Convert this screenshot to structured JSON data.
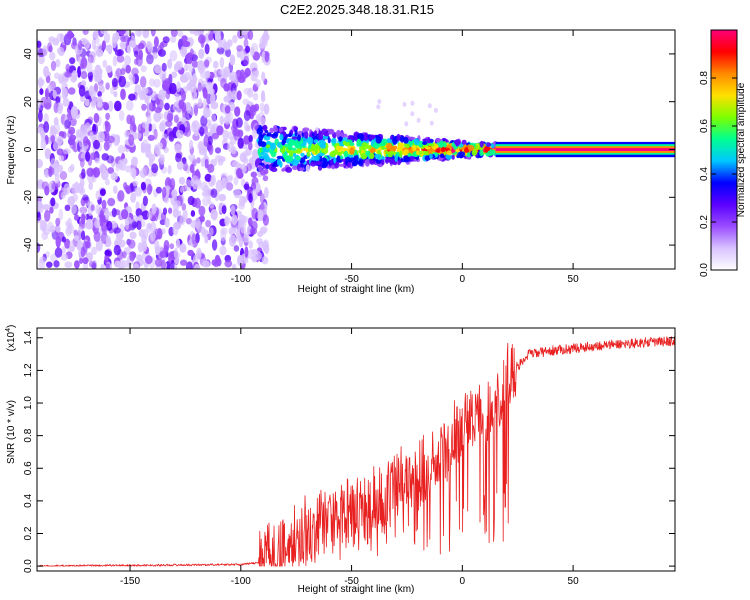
{
  "title": "C2E2.2025.348.18.31.R15",
  "chart_data": [
    {
      "type": "heatmap",
      "xlabel": "Height of straight line (km)",
      "ylabel": "Frequency (Hz)",
      "xlim": [
        -192,
        96
      ],
      "ylim": [
        -50,
        50
      ],
      "xticks": [
        -150,
        -100,
        -50,
        0,
        50
      ],
      "yticks": [
        -40,
        -20,
        0,
        20,
        40
      ],
      "colorbar": {
        "label": "Normalized spectral amplitude",
        "range": [
          0.0,
          1.0
        ],
        "ticks": [
          0.0,
          0.2,
          0.4,
          0.6,
          0.8
        ],
        "tick_labels": [
          "0.0",
          "0.2",
          "0.4",
          "0.6",
          "0.8"
        ],
        "colors": [
          "#ffffff",
          "#d9c2ff",
          "#9a4dff",
          "#5a00ff",
          "#0000ff",
          "#00c8ff",
          "#00ff90",
          "#7dff00",
          "#ffe000",
          "#ff8a00",
          "#ff0000",
          "#ff007a"
        ]
      },
      "regions": [
        {
          "x_range": [
            -192,
            -92
          ],
          "description_level": "noise",
          "amplitude": 0.08
        },
        {
          "x_range": [
            -92,
            15
          ],
          "description_level": "mixed signal near 0 Hz",
          "amplitude": 0.45
        },
        {
          "x_range": [
            15,
            96
          ],
          "description_level": "strong tone at 0 Hz",
          "amplitude": 1.0
        }
      ]
    },
    {
      "type": "line",
      "xlabel": "Height of straight line (km)",
      "ylabel": "SNR (10 * v/v)",
      "scale_label": "(x10",
      "scale_exp": "4",
      "scale_close": ")",
      "xlim": [
        -192,
        96
      ],
      "ylim": [
        -0.03,
        1.46
      ],
      "xticks": [
        -150,
        -100,
        -50,
        0,
        50
      ],
      "yticks": [
        0.0,
        0.2,
        0.4,
        0.6,
        0.8,
        1.0,
        1.2,
        1.4
      ],
      "ytick_labels": [
        "0.0",
        "0.2",
        "0.4",
        "0.6",
        "0.8",
        "1.0",
        "1.2",
        "1.4"
      ],
      "color": "#e82020",
      "envelope": {
        "x": [
          -192,
          -100,
          -92,
          -85,
          -80,
          -70,
          -60,
          -50,
          -40,
          -30,
          -20,
          -10,
          0,
          5,
          10,
          15,
          20,
          25,
          30,
          40,
          60,
          80,
          96
        ],
        "y": [
          0.0,
          0.01,
          0.02,
          0.08,
          0.15,
          0.2,
          0.3,
          0.32,
          0.38,
          0.52,
          0.55,
          0.7,
          0.85,
          0.9,
          0.9,
          1.0,
          1.15,
          1.22,
          1.3,
          1.32,
          1.35,
          1.37,
          1.38
        ]
      }
    }
  ]
}
